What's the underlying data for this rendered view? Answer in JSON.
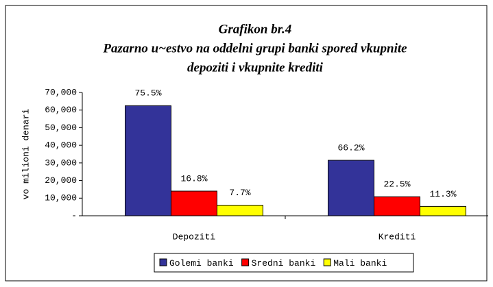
{
  "chart_data": {
    "type": "bar",
    "title": [
      "Grafikon br.4",
      "Pazarno u~estvo na oddelni grupi banki spored vkupnite",
      "depoziti i vkupnite krediti"
    ],
    "y_label": "vo milioni denari",
    "categories": [
      "Depoziti",
      "Krediti"
    ],
    "series": [
      {
        "name": "Golemi banki",
        "color": "#333399",
        "values": [
          62500,
          31500
        ],
        "share_labels": [
          "75.5%",
          "66.2%"
        ]
      },
      {
        "name": "Sredni banki",
        "color": "#ff0000",
        "values": [
          14000,
          10800
        ],
        "share_labels": [
          "16.8%",
          "22.5%"
        ]
      },
      {
        "name": "Mali banki",
        "color": "#ffff00",
        "values": [
          6000,
          5300
        ],
        "share_labels": [
          "7.7%",
          "11.3%"
        ]
      }
    ],
    "ylim": [
      0,
      70000
    ],
    "yticks": [
      {
        "value": 0,
        "label": "-"
      },
      {
        "value": 10000,
        "label": "10,000"
      },
      {
        "value": 20000,
        "label": "20,000"
      },
      {
        "value": 30000,
        "label": "30,000"
      },
      {
        "value": 40000,
        "label": "40,000"
      },
      {
        "value": 50000,
        "label": "50,000"
      },
      {
        "value": 60000,
        "label": "60,000"
      },
      {
        "value": 70000,
        "label": "70,000"
      }
    ],
    "legend": "bottom"
  }
}
